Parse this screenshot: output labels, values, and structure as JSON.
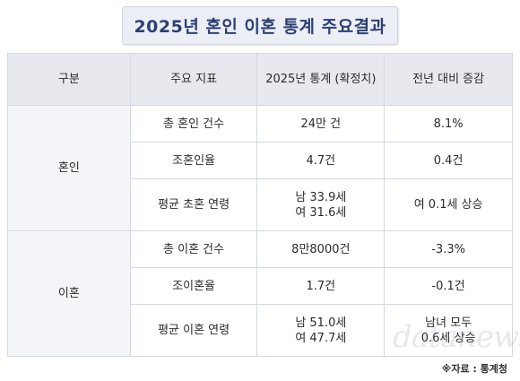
{
  "title": "2025년 혼인 이혼 통계 주요결과",
  "headers": [
    "구분",
    "주요 지표",
    "2025년 통계 (확정치)",
    "전년 대비 증감"
  ],
  "groups": [
    {
      "name": "혼인",
      "rows": [
        {
          "indicator": "총 혼인 건수",
          "value": [
            "24만 건"
          ],
          "change": [
            "8.1%"
          ]
        },
        {
          "indicator": "조혼인율",
          "value": [
            "4.7건"
          ],
          "change": [
            "0.4건"
          ]
        },
        {
          "indicator": "평균 초혼 연령",
          "value": [
            "남 33.9세",
            "여 31.6세"
          ],
          "change": [
            "여 0.1세 상승"
          ]
        }
      ]
    },
    {
      "name": "이혼",
      "rows": [
        {
          "indicator": "총 이혼 건수",
          "value": [
            "8만8000건"
          ],
          "change": [
            "-3.3%"
          ]
        },
        {
          "indicator": "조이혼율",
          "value": [
            "1.7건"
          ],
          "change": [
            "-0.1건"
          ]
        },
        {
          "indicator": "평균 이혼 연령",
          "value": [
            "남 51.0세",
            "여 47.7세"
          ],
          "change": [
            "남녀 모두",
            "0.6세 상승"
          ]
        }
      ]
    }
  ],
  "source": "※자료 : 통계청",
  "watermark": "datanews"
}
